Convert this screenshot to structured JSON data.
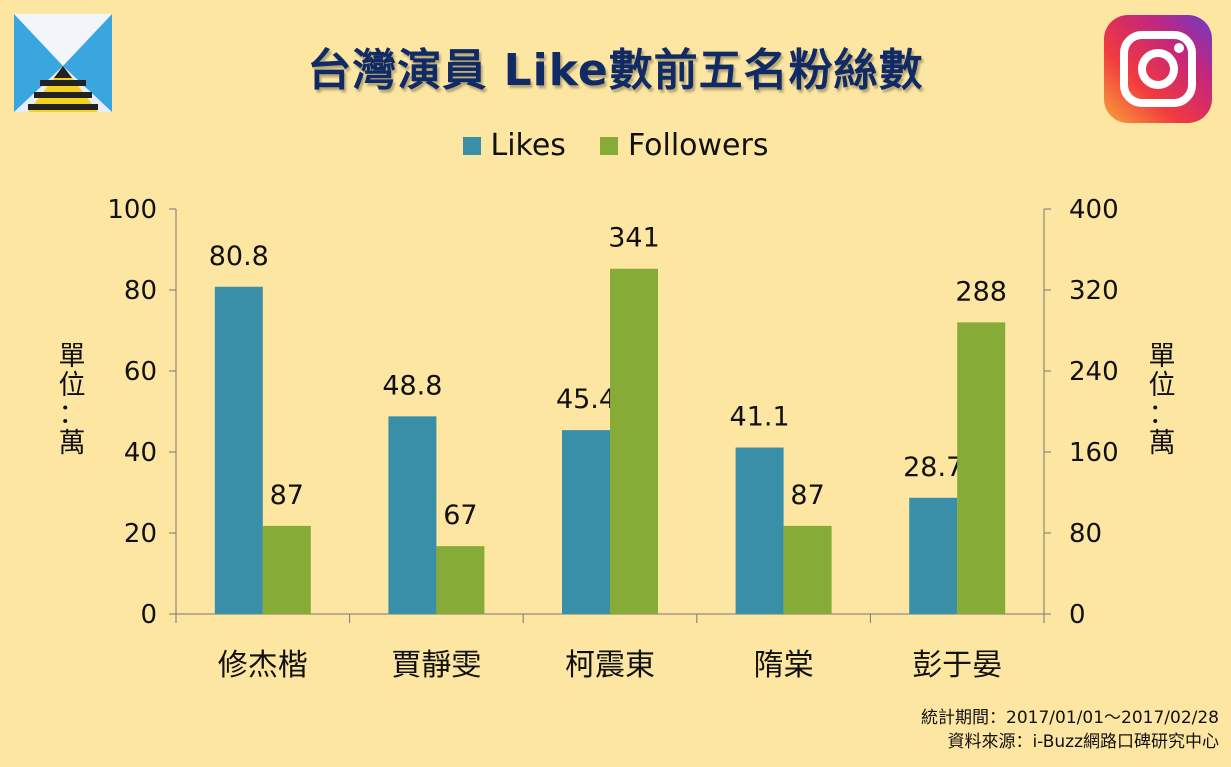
{
  "chart_data": {
    "type": "bar",
    "title": "台灣演員 Like數前五名粉絲數",
    "categories": [
      "修杰楷",
      "賈靜雯",
      "柯震東",
      "隋棠",
      "彭于晏"
    ],
    "series": [
      {
        "name": "Likes",
        "axis": "left",
        "color": "#3A8FA8",
        "values": [
          80.8,
          48.8,
          45.4,
          41.1,
          28.7
        ],
        "labels": [
          "80.8",
          "48.8",
          "45.4",
          "41.1",
          "28.7"
        ]
      },
      {
        "name": "Followers",
        "axis": "right",
        "color": "#86AB37",
        "values": [
          87,
          67,
          341,
          87,
          288
        ],
        "labels": [
          "87",
          "67",
          "341",
          "87",
          "288"
        ]
      }
    ],
    "y_left": {
      "label": "單位：萬",
      "ylim": [
        0,
        100
      ],
      "ticks": [
        "0",
        "20",
        "40",
        "60",
        "80",
        "100"
      ]
    },
    "y_right": {
      "label": "單位：萬",
      "ylim": [
        0,
        400
      ],
      "ticks": [
        "0",
        "80",
        "160",
        "240",
        "320",
        "400"
      ]
    },
    "legend_position": "top-center",
    "grid": false
  },
  "footer": {
    "period": "統計期間：2017/01/01～2017/02/28",
    "source": "資料來源：i-Buzz網路口碑研究中心"
  },
  "colors": {
    "background": "#FDE6A2",
    "title": "#102A66",
    "axis": "#777777"
  },
  "icons": {
    "logo": "ibuzz-logo-icon",
    "instagram": "instagram-icon"
  }
}
